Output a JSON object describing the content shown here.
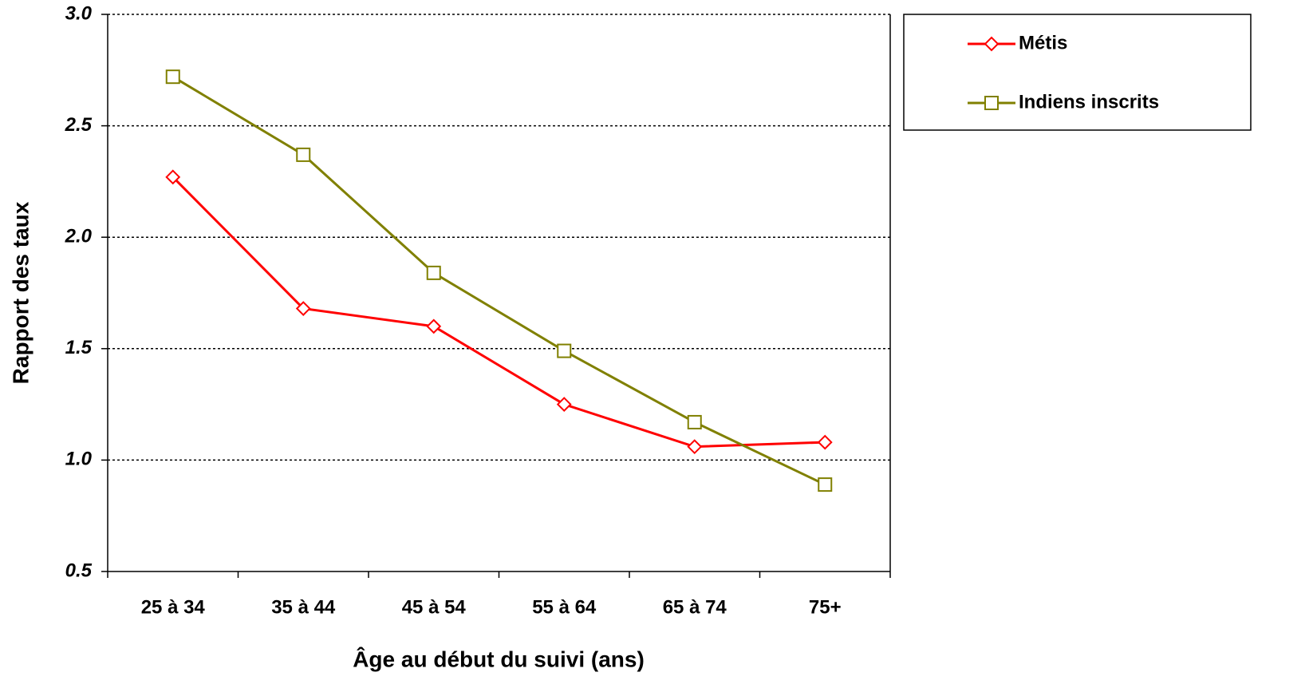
{
  "chart_data": {
    "type": "line",
    "x_label": "Âge au début du suivi (ans)",
    "y_label": "Rapport des taux",
    "categories": [
      "25 à 34",
      "35 à 44",
      "45 à 54",
      "55 à 64",
      "65 à 74",
      "75+"
    ],
    "series": [
      {
        "name": "Métis",
        "color": "#ff0000",
        "marker": "diamond",
        "values": [
          2.27,
          1.68,
          1.6,
          1.25,
          1.06,
          1.08
        ]
      },
      {
        "name": "Indiens inscrits",
        "color": "#808000",
        "marker": "square",
        "values": [
          2.72,
          2.37,
          1.84,
          1.49,
          1.17,
          0.89
        ]
      }
    ],
    "ylim": [
      0.5,
      3.0
    ],
    "yticks": [
      {
        "value": 0.5,
        "label": "0.5"
      },
      {
        "value": 1.0,
        "label": "1.0"
      },
      {
        "value": 1.5,
        "label": "1.5"
      },
      {
        "value": 2.0,
        "label": "2.0"
      },
      {
        "value": 2.5,
        "label": "2.5"
      },
      {
        "value": 3.0,
        "label": "3.0"
      }
    ],
    "grid": true,
    "legend": "top-right"
  }
}
